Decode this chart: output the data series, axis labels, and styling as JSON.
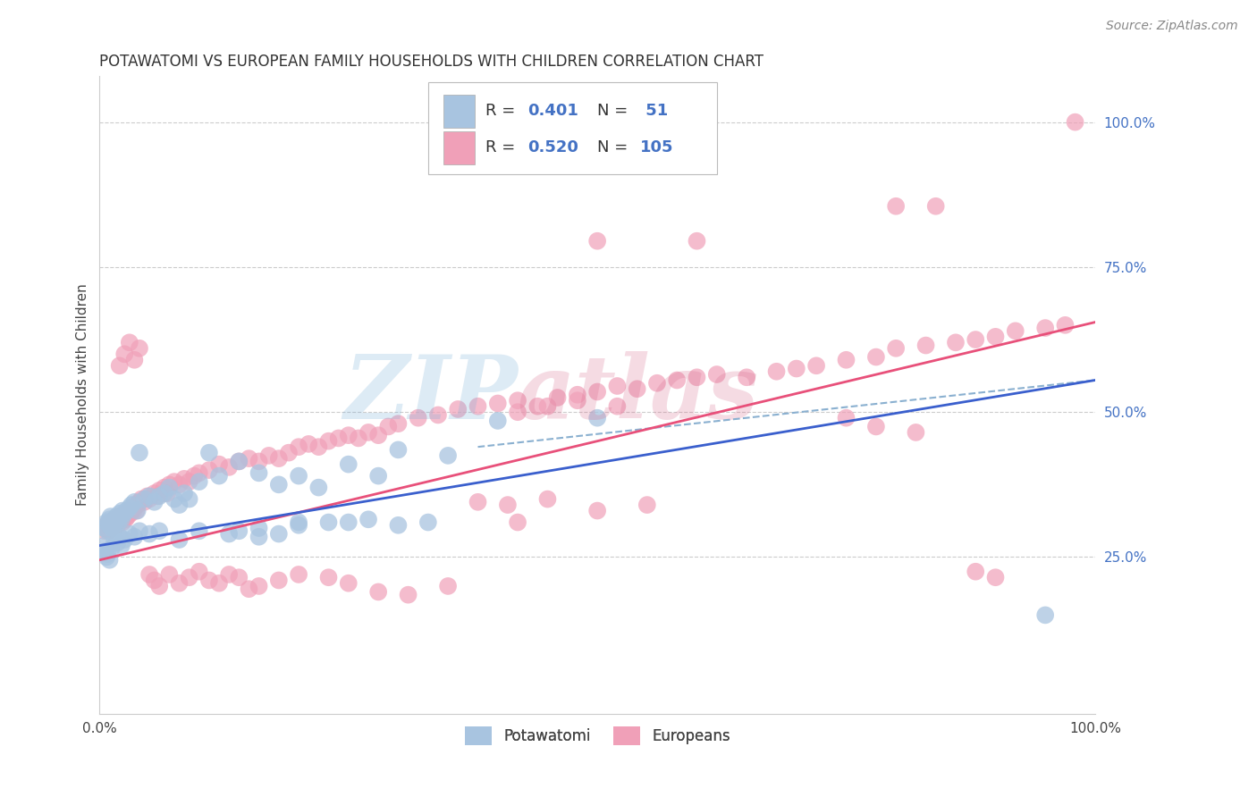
{
  "title": "POTAWATOMI VS EUROPEAN FAMILY HOUSEHOLDS WITH CHILDREN CORRELATION CHART",
  "source": "Source: ZipAtlas.com",
  "ylabel": "Family Households with Children",
  "xlim": [
    0.0,
    1.0
  ],
  "ylim": [
    -0.02,
    1.08
  ],
  "potawatomi_color": "#a8c4e0",
  "european_color": "#f0a0b8",
  "potawatomi_line_color": "#3a5fcd",
  "european_line_color": "#e8507a",
  "dashed_line_color": "#8ab0d0",
  "watermark_zip_color": "#7ab0d8",
  "watermark_atlas_color": "#d87090",
  "background_color": "#ffffff",
  "grid_color": "#cccccc",
  "potawatomi_R": 0.401,
  "potawatomi_N": 51,
  "european_R": 0.52,
  "european_N": 105,
  "pot_line_x0": 0.0,
  "pot_line_y0": 0.27,
  "pot_line_x1": 1.0,
  "pot_line_y1": 0.555,
  "eur_line_x0": 0.0,
  "eur_line_y0": 0.245,
  "eur_line_x1": 1.0,
  "eur_line_y1": 0.655,
  "dash_line_x0": 0.38,
  "dash_line_y0": 0.44,
  "dash_line_x1": 1.0,
  "dash_line_y1": 0.555,
  "potawatomi_x": [
    0.005,
    0.007,
    0.008,
    0.009,
    0.01,
    0.01,
    0.011,
    0.012,
    0.013,
    0.014,
    0.015,
    0.016,
    0.017,
    0.018,
    0.019,
    0.02,
    0.021,
    0.022,
    0.023,
    0.025,
    0.027,
    0.03,
    0.032,
    0.035,
    0.038,
    0.04,
    0.045,
    0.05,
    0.055,
    0.06,
    0.065,
    0.07,
    0.075,
    0.08,
    0.085,
    0.09,
    0.1,
    0.11,
    0.12,
    0.14,
    0.16,
    0.18,
    0.2,
    0.22,
    0.25,
    0.28,
    0.3,
    0.35,
    0.4,
    0.5,
    0.95
  ],
  "potawatomi_y": [
    0.3,
    0.31,
    0.295,
    0.31,
    0.315,
    0.305,
    0.32,
    0.3,
    0.31,
    0.3,
    0.315,
    0.31,
    0.32,
    0.315,
    0.31,
    0.325,
    0.32,
    0.315,
    0.33,
    0.325,
    0.33,
    0.335,
    0.34,
    0.345,
    0.33,
    0.43,
    0.35,
    0.355,
    0.345,
    0.355,
    0.36,
    0.37,
    0.35,
    0.34,
    0.36,
    0.35,
    0.38,
    0.43,
    0.39,
    0.415,
    0.395,
    0.375,
    0.39,
    0.37,
    0.41,
    0.39,
    0.435,
    0.425,
    0.485,
    0.49,
    0.15
  ],
  "potawatomi_extra_x": [
    0.005,
    0.006,
    0.007,
    0.008,
    0.01,
    0.012,
    0.015,
    0.018,
    0.02,
    0.022,
    0.025,
    0.03,
    0.035,
    0.04,
    0.05,
    0.06,
    0.08,
    0.1,
    0.13,
    0.16,
    0.2,
    0.14,
    0.16,
    0.18,
    0.2,
    0.23,
    0.25,
    0.27,
    0.3,
    0.33
  ],
  "potawatomi_extra_y": [
    0.27,
    0.26,
    0.25,
    0.255,
    0.245,
    0.265,
    0.28,
    0.275,
    0.285,
    0.27,
    0.28,
    0.29,
    0.285,
    0.295,
    0.29,
    0.295,
    0.28,
    0.295,
    0.29,
    0.3,
    0.31,
    0.295,
    0.285,
    0.29,
    0.305,
    0.31,
    0.31,
    0.315,
    0.305,
    0.31
  ],
  "european_x": [
    0.005,
    0.007,
    0.008,
    0.009,
    0.01,
    0.011,
    0.012,
    0.013,
    0.014,
    0.015,
    0.016,
    0.017,
    0.018,
    0.019,
    0.02,
    0.021,
    0.022,
    0.023,
    0.024,
    0.025,
    0.026,
    0.027,
    0.028,
    0.029,
    0.03,
    0.031,
    0.032,
    0.033,
    0.034,
    0.035,
    0.036,
    0.037,
    0.038,
    0.04,
    0.042,
    0.045,
    0.048,
    0.05,
    0.055,
    0.058,
    0.06,
    0.065,
    0.068,
    0.07,
    0.075,
    0.08,
    0.085,
    0.09,
    0.095,
    0.1,
    0.11,
    0.12,
    0.13,
    0.14,
    0.15,
    0.16,
    0.17,
    0.18,
    0.19,
    0.2,
    0.21,
    0.22,
    0.23,
    0.24,
    0.25,
    0.26,
    0.27,
    0.28,
    0.29,
    0.3,
    0.32,
    0.34,
    0.36,
    0.38,
    0.4,
    0.42,
    0.44,
    0.46,
    0.48,
    0.5,
    0.52,
    0.54,
    0.56,
    0.58,
    0.6,
    0.62,
    0.65,
    0.68,
    0.7,
    0.72,
    0.75,
    0.78,
    0.8,
    0.83,
    0.86,
    0.88,
    0.9,
    0.92,
    0.95,
    0.97,
    0.5,
    0.6,
    0.8,
    0.84,
    0.98
  ],
  "european_y": [
    0.295,
    0.305,
    0.3,
    0.295,
    0.31,
    0.305,
    0.3,
    0.31,
    0.305,
    0.315,
    0.31,
    0.315,
    0.305,
    0.31,
    0.32,
    0.315,
    0.32,
    0.31,
    0.315,
    0.325,
    0.315,
    0.325,
    0.32,
    0.325,
    0.33,
    0.325,
    0.33,
    0.335,
    0.33,
    0.335,
    0.34,
    0.33,
    0.34,
    0.345,
    0.35,
    0.345,
    0.355,
    0.35,
    0.36,
    0.355,
    0.365,
    0.37,
    0.36,
    0.375,
    0.38,
    0.375,
    0.385,
    0.38,
    0.39,
    0.395,
    0.4,
    0.41,
    0.405,
    0.415,
    0.42,
    0.415,
    0.425,
    0.42,
    0.43,
    0.44,
    0.445,
    0.44,
    0.45,
    0.455,
    0.46,
    0.455,
    0.465,
    0.46,
    0.475,
    0.48,
    0.49,
    0.495,
    0.505,
    0.51,
    0.515,
    0.52,
    0.51,
    0.525,
    0.53,
    0.535,
    0.545,
    0.54,
    0.55,
    0.555,
    0.56,
    0.565,
    0.56,
    0.57,
    0.575,
    0.58,
    0.59,
    0.595,
    0.61,
    0.615,
    0.62,
    0.625,
    0.63,
    0.64,
    0.645,
    0.65,
    0.795,
    0.795,
    0.855,
    0.855,
    1.0
  ],
  "european_extra_x": [
    0.02,
    0.025,
    0.03,
    0.035,
    0.04,
    0.05,
    0.055,
    0.06,
    0.07,
    0.08,
    0.09,
    0.1,
    0.11,
    0.12,
    0.13,
    0.14,
    0.15,
    0.16,
    0.18,
    0.2,
    0.23,
    0.25,
    0.28,
    0.31,
    0.35,
    0.38,
    0.41,
    0.45,
    0.5,
    0.55,
    0.42,
    0.45,
    0.48,
    0.52,
    0.42,
    0.9,
    0.88,
    0.75,
    0.78,
    0.82
  ],
  "european_extra_y": [
    0.58,
    0.6,
    0.62,
    0.59,
    0.61,
    0.22,
    0.21,
    0.2,
    0.22,
    0.205,
    0.215,
    0.225,
    0.21,
    0.205,
    0.22,
    0.215,
    0.195,
    0.2,
    0.21,
    0.22,
    0.215,
    0.205,
    0.19,
    0.185,
    0.2,
    0.345,
    0.34,
    0.35,
    0.33,
    0.34,
    0.5,
    0.51,
    0.52,
    0.51,
    0.31,
    0.215,
    0.225,
    0.49,
    0.475,
    0.465
  ]
}
